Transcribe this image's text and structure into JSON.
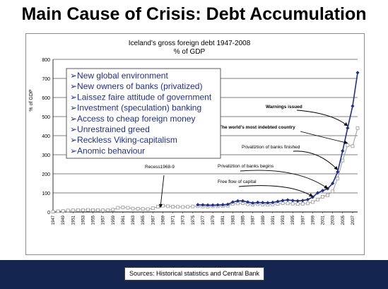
{
  "slide_title": "Main Cause of Crisis: Debt Accumulation",
  "footer_source": "Sources: Historical statistics and Central Bank",
  "bullet_box": {
    "items": [
      "New global environment",
      "New owners of banks (privatized)",
      "Laissez faire attitude of government",
      "Investment (speculation) banking",
      "Access to cheap foreign money",
      "Unrestrained greed",
      "Reckless Viking-capitalism",
      "Anomic behaviour"
    ],
    "bullet_glyph": "➢",
    "color": "#1f2f8f"
  },
  "chart_data": {
    "type": "line",
    "title": "Iceland's gross foreign debt 1947-2008",
    "subtitle": "% of GDP",
    "ylabel": "% of GDP",
    "xlabel": "",
    "ylim": [
      0,
      800
    ],
    "yticks": [
      0,
      100,
      200,
      300,
      400,
      500,
      600,
      700,
      800
    ],
    "xlim": [
      1947,
      2008
    ],
    "xtick_labels": [
      "1947",
      "1949",
      "1951",
      "1953",
      "1955",
      "1957",
      "1959",
      "1961",
      "1963",
      "1965",
      "1967",
      "1969",
      "1971",
      "1973",
      "1975",
      "1977",
      "1979",
      "1981",
      "1983",
      "1985",
      "1987",
      "1989",
      "1991",
      "1993",
      "1995",
      "1997",
      "1999",
      "2001",
      "2003",
      "2005",
      "2007"
    ],
    "grid": "horizontal",
    "series": [
      {
        "style": "hollow-square-gray",
        "color": "#9a9a9a",
        "x": [
          1947,
          1948,
          1949,
          1950,
          1951,
          1952,
          1953,
          1954,
          1955,
          1956,
          1957,
          1958,
          1959,
          1960,
          1961,
          1962,
          1963,
          1964,
          1965,
          1966,
          1967,
          1968,
          1969,
          1970,
          1971,
          1972,
          1973,
          1974,
          1975,
          1976,
          1977,
          1978,
          1979,
          1980,
          1981,
          1982,
          1983,
          1984,
          1985,
          1986,
          1987,
          1988,
          1989,
          1990,
          1991,
          1992,
          1993,
          1994,
          1995,
          1996,
          1997,
          1998,
          1999,
          2000,
          2001,
          2002,
          2003,
          2004,
          2005,
          2006,
          2007,
          2008
        ],
        "values": [
          1,
          4,
          6,
          8,
          9,
          10,
          10,
          11,
          10,
          10,
          9,
          10,
          12,
          22,
          24,
          22,
          18,
          17,
          16,
          15,
          20,
          27,
          33,
          30,
          28,
          27,
          26,
          27,
          29,
          30,
          29,
          28,
          30,
          30,
          31,
          33,
          43,
          45,
          46,
          41,
          39,
          41,
          39,
          38,
          40,
          43,
          46,
          45,
          44,
          42,
          43,
          45,
          52,
          65,
          80,
          88,
          108,
          175,
          270,
          350,
          345,
          440
        ]
      },
      {
        "style": "filled-diamond-blue",
        "color": "#1f2f8f",
        "x": [
          1976,
          1977,
          1978,
          1979,
          1980,
          1981,
          1982,
          1983,
          1984,
          1985,
          1986,
          1987,
          1988,
          1989,
          1990,
          1991,
          1992,
          1993,
          1994,
          1995,
          1996,
          1997,
          1998,
          1999,
          2000,
          2001,
          2002,
          2003,
          2004,
          2005,
          2006,
          2007,
          2008
        ],
        "values": [
          38,
          37,
          36,
          36,
          37,
          38,
          40,
          52,
          58,
          58,
          52,
          47,
          50,
          49,
          48,
          50,
          55,
          60,
          63,
          60,
          58,
          60,
          65,
          78,
          100,
          112,
          122,
          150,
          210,
          320,
          440,
          555,
          730
        ]
      }
    ],
    "annotations": [
      {
        "text": "Recess1968-9",
        "target_x": 1968.5,
        "target_y": 12
      },
      {
        "text": "Free flow of capital",
        "target_x": 1999,
        "target_y": 70
      },
      {
        "text": "Privatiztion of banks begins",
        "target_x": 2002,
        "target_y": 112
      },
      {
        "text": "Privatiztion of banks finished",
        "target_x": 2004,
        "target_y": 210
      },
      {
        "text": "The world's most indebted country",
        "target_x": 2006,
        "target_y": 350
      },
      {
        "text": "Warnings issued",
        "target_x": 2006,
        "target_y": 440
      }
    ]
  }
}
